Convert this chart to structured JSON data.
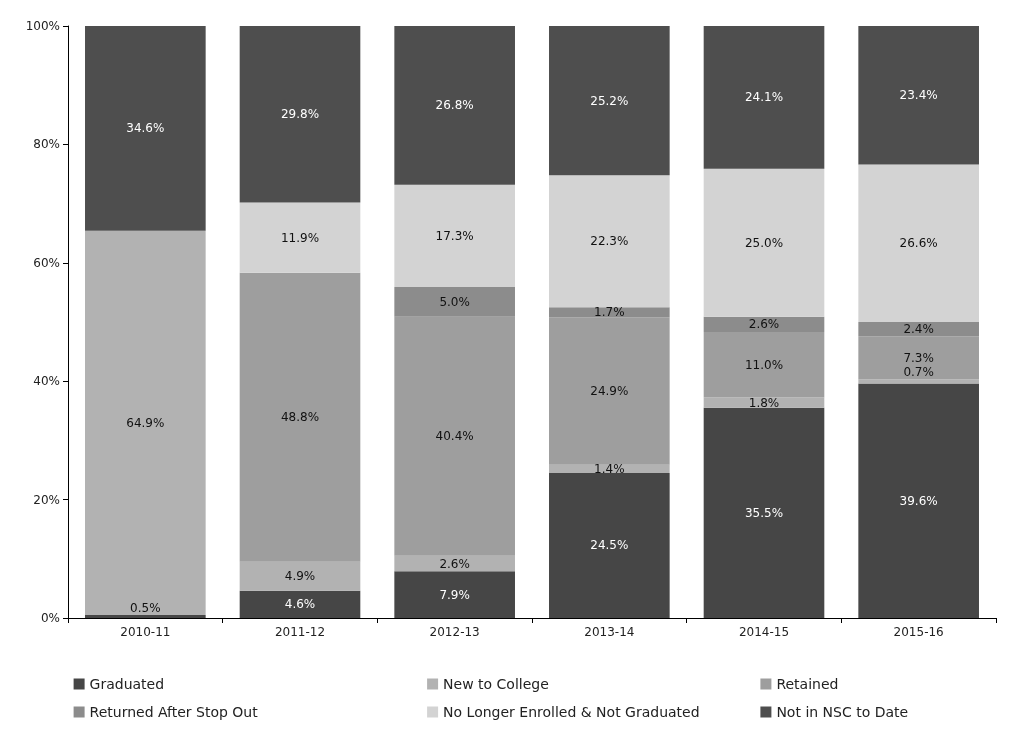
{
  "chart_data": {
    "type": "bar",
    "stacked": true,
    "categories": [
      "2010-11",
      "2011-12",
      "2012-13",
      "2013-14",
      "2014-15",
      "2015-16"
    ],
    "series": [
      {
        "name": "Graduated",
        "color": "#464646",
        "values": [
          0.5,
          4.6,
          7.9,
          24.5,
          35.5,
          39.6
        ],
        "value_labels": [
          "0.5%",
          "4.6%",
          "7.9%",
          "24.5%",
          "35.5%",
          "39.6%"
        ]
      },
      {
        "name": "New to College",
        "color": "#b2b2b2",
        "values": [
          64.9,
          4.9,
          2.6,
          1.4,
          1.8,
          0.7
        ],
        "value_labels": [
          "64.9%",
          "4.9%",
          "2.6%",
          "1.4%",
          "1.8%",
          "0.7%"
        ]
      },
      {
        "name": "Retained",
        "color": "#9e9e9e",
        "values": [
          null,
          48.8,
          40.4,
          24.9,
          11.0,
          7.3
        ],
        "value_labels": [
          null,
          "48.8%",
          "40.4%",
          "24.9%",
          "11.0%",
          "7.3%"
        ]
      },
      {
        "name": "Returned After Stop Out",
        "color": "#8c8c8c",
        "values": [
          null,
          null,
          5.0,
          1.7,
          2.6,
          2.4
        ],
        "value_labels": [
          null,
          null,
          "5.0%",
          "1.7%",
          "2.6%",
          "2.4%"
        ]
      },
      {
        "name": "No Longer Enrolled & Not Graduated",
        "color": "#d3d3d3",
        "values": [
          null,
          11.9,
          17.3,
          22.3,
          25.0,
          26.6
        ],
        "value_labels": [
          null,
          "11.9%",
          "17.3%",
          "22.3%",
          "25.0%",
          "26.6%"
        ]
      },
      {
        "name": "Not in NSC to Date",
        "color": "#4e4e4e",
        "values": [
          34.6,
          29.8,
          26.8,
          25.2,
          24.1,
          23.4
        ],
        "value_labels": [
          "34.6%",
          "29.8%",
          "26.8%",
          "25.2%",
          "24.1%",
          "23.4%"
        ]
      }
    ],
    "ylim": [
      0,
      100
    ],
    "yticks": [
      {
        "value": 0,
        "label": "0%"
      },
      {
        "value": 20,
        "label": "20%"
      },
      {
        "value": 40,
        "label": "40%"
      },
      {
        "value": 60,
        "label": "60%"
      },
      {
        "value": 80,
        "label": "80%"
      },
      {
        "value": 100,
        "label": "100%"
      }
    ],
    "grid": false,
    "legend": "bottom"
  }
}
